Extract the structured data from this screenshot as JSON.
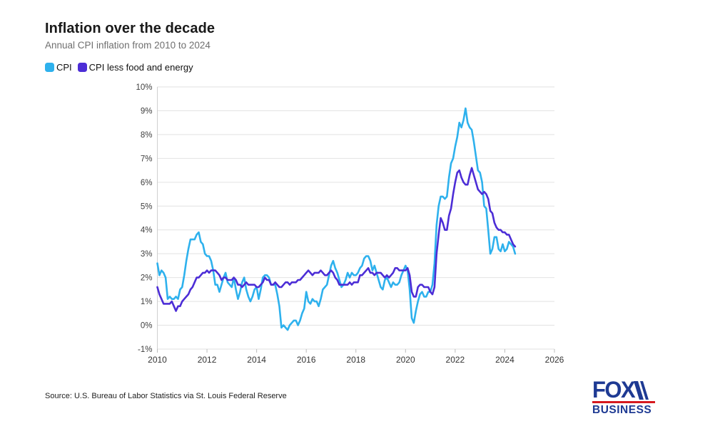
{
  "header": {
    "title": "Inflation over the decade",
    "subtitle": "Annual CPI inflation from 2010 to 2024"
  },
  "footer": {
    "source": "Source: U.S. Bureau of Labor Statistics via St. Louis Federal Reserve",
    "logo": {
      "line1": "FOX",
      "line2": "BUSINESS",
      "navy": "#1e3a93",
      "red": "#d6191f"
    }
  },
  "chart_data": {
    "type": "line",
    "title": "Inflation over the decade",
    "subtitle": "Annual CPI inflation from 2010 to 2024",
    "xlabel": "",
    "ylabel": "",
    "xlim": [
      2010,
      2026
    ],
    "ylim": [
      -1,
      10
    ],
    "grid": true,
    "legend_position": "top-left",
    "x_start_year": 2010,
    "points_per_year": 12,
    "x_ticks": [
      2010,
      2012,
      2014,
      2016,
      2018,
      2020,
      2022,
      2024,
      2026
    ],
    "y_ticks": [
      {
        "value": 10,
        "label": "10%"
      },
      {
        "value": 9,
        "label": "9%"
      },
      {
        "value": 8,
        "label": "8%"
      },
      {
        "value": 7,
        "label": "7%"
      },
      {
        "value": 6,
        "label": "6%"
      },
      {
        "value": 5,
        "label": "5%"
      },
      {
        "value": 4,
        "label": "4%"
      },
      {
        "value": 3,
        "label": "3%"
      },
      {
        "value": 2,
        "label": "2%"
      },
      {
        "value": 1,
        "label": "1%"
      },
      {
        "value": 0,
        "label": "0%"
      },
      {
        "value": -1,
        "label": "-1%"
      }
    ],
    "colors": {
      "grid": "#e2e2e2",
      "axis": "#cfcfcf",
      "tick": "#bdbdbd"
    },
    "series": [
      {
        "name": "CPI",
        "color": "#2eb1ed",
        "values": [
          2.6,
          2.1,
          2.3,
          2.2,
          2.0,
          1.1,
          1.2,
          1.1,
          1.1,
          1.2,
          1.1,
          1.5,
          1.6,
          2.1,
          2.7,
          3.2,
          3.6,
          3.6,
          3.6,
          3.8,
          3.9,
          3.5,
          3.4,
          3.0,
          2.9,
          2.9,
          2.7,
          2.3,
          1.7,
          1.7,
          1.4,
          1.7,
          2.0,
          2.2,
          1.8,
          1.7,
          1.6,
          2.0,
          1.5,
          1.1,
          1.4,
          1.8,
          2.0,
          1.5,
          1.2,
          1.0,
          1.2,
          1.5,
          1.6,
          1.1,
          1.5,
          2.0,
          2.1,
          2.1,
          2.0,
          1.7,
          1.7,
          1.7,
          1.3,
          0.8,
          -0.1,
          0.0,
          -0.1,
          -0.2,
          0.0,
          0.1,
          0.2,
          0.2,
          0.0,
          0.2,
          0.5,
          0.7,
          1.4,
          1.0,
          0.9,
          1.1,
          1.0,
          1.0,
          0.8,
          1.1,
          1.5,
          1.6,
          1.7,
          2.1,
          2.5,
          2.7,
          2.4,
          2.2,
          1.9,
          1.6,
          1.7,
          1.9,
          2.2,
          2.0,
          2.2,
          2.1,
          2.1,
          2.2,
          2.4,
          2.5,
          2.8,
          2.9,
          2.9,
          2.7,
          2.3,
          2.5,
          2.2,
          1.9,
          1.6,
          1.5,
          1.9,
          2.0,
          1.8,
          1.6,
          1.8,
          1.7,
          1.7,
          1.8,
          2.1,
          2.3,
          2.5,
          2.3,
          1.5,
          0.3,
          0.1,
          0.6,
          1.0,
          1.3,
          1.4,
          1.2,
          1.2,
          1.4,
          1.4,
          1.7,
          2.6,
          4.2,
          5.0,
          5.4,
          5.4,
          5.3,
          5.4,
          6.2,
          6.8,
          7.0,
          7.5,
          7.9,
          8.5,
          8.3,
          8.6,
          9.1,
          8.5,
          8.3,
          8.2,
          7.7,
          7.1,
          6.5,
          6.4,
          6.0,
          5.0,
          4.9,
          4.0,
          3.0,
          3.2,
          3.7,
          3.7,
          3.2,
          3.1,
          3.4,
          3.1,
          3.2,
          3.5,
          3.4,
          3.3,
          3.0
        ]
      },
      {
        "name": "CPI less food and energy",
        "color": "#4c2dd6",
        "values": [
          1.6,
          1.3,
          1.1,
          0.9,
          0.9,
          0.9,
          0.9,
          1.0,
          0.8,
          0.6,
          0.8,
          0.8,
          1.0,
          1.1,
          1.2,
          1.3,
          1.5,
          1.6,
          1.8,
          2.0,
          2.0,
          2.1,
          2.2,
          2.2,
          2.3,
          2.2,
          2.3,
          2.3,
          2.3,
          2.2,
          2.1,
          1.9,
          2.0,
          2.0,
          1.9,
          1.9,
          1.9,
          2.0,
          1.9,
          1.7,
          1.7,
          1.6,
          1.7,
          1.8,
          1.7,
          1.7,
          1.7,
          1.7,
          1.6,
          1.6,
          1.7,
          1.8,
          2.0,
          1.9,
          1.9,
          1.7,
          1.7,
          1.8,
          1.7,
          1.6,
          1.6,
          1.7,
          1.8,
          1.8,
          1.7,
          1.8,
          1.8,
          1.8,
          1.9,
          1.9,
          2.0,
          2.1,
          2.2,
          2.3,
          2.2,
          2.1,
          2.2,
          2.2,
          2.2,
          2.3,
          2.2,
          2.1,
          2.1,
          2.2,
          2.3,
          2.2,
          2.0,
          1.9,
          1.7,
          1.7,
          1.7,
          1.7,
          1.7,
          1.8,
          1.7,
          1.8,
          1.8,
          1.8,
          2.1,
          2.1,
          2.2,
          2.3,
          2.4,
          2.2,
          2.2,
          2.1,
          2.2,
          2.2,
          2.2,
          2.1,
          2.0,
          2.1,
          2.0,
          2.1,
          2.2,
          2.4,
          2.4,
          2.3,
          2.3,
          2.3,
          2.3,
          2.4,
          2.1,
          1.4,
          1.2,
          1.2,
          1.6,
          1.7,
          1.7,
          1.6,
          1.6,
          1.6,
          1.4,
          1.3,
          1.6,
          3.0,
          3.8,
          4.5,
          4.3,
          4.0,
          4.0,
          4.6,
          4.9,
          5.5,
          6.0,
          6.4,
          6.5,
          6.2,
          6.0,
          5.9,
          5.9,
          6.3,
          6.6,
          6.3,
          6.0,
          5.7,
          5.6,
          5.5,
          5.6,
          5.5,
          5.3,
          4.8,
          4.7,
          4.3,
          4.1,
          4.0,
          4.0,
          3.9,
          3.9,
          3.8,
          3.8,
          3.6,
          3.4,
          3.3
        ]
      }
    ]
  }
}
